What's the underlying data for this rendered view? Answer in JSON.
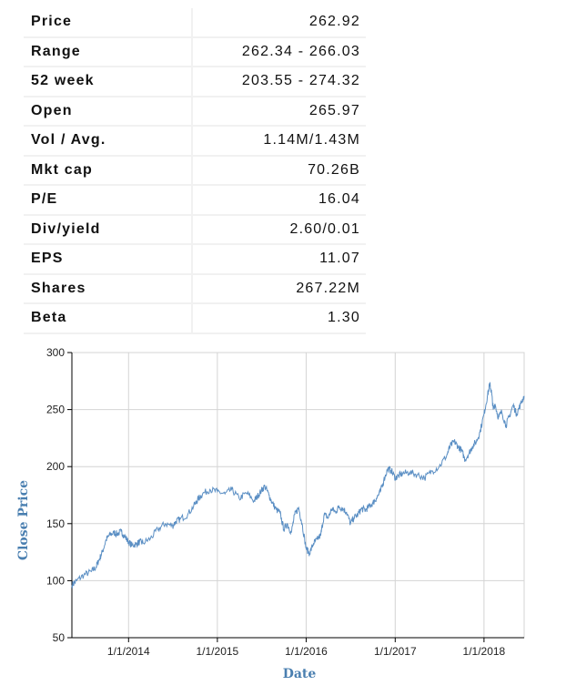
{
  "stats": [
    {
      "label": "Price",
      "value": "262.92"
    },
    {
      "label": "Range",
      "value": "262.34 - 266.03"
    },
    {
      "label": "52 week",
      "value": "203.55 - 274.32"
    },
    {
      "label": "Open",
      "value": "265.97"
    },
    {
      "label": "Vol / Avg.",
      "value": "1.14M/1.43M"
    },
    {
      "label": "Mkt cap",
      "value": "70.26B"
    },
    {
      "label": "P/E",
      "value": "16.04"
    },
    {
      "label": "Div/yield",
      "value": "2.60/0.01"
    },
    {
      "label": "EPS",
      "value": "11.07"
    },
    {
      "label": "Shares",
      "value": "267.22M"
    },
    {
      "label": "Beta",
      "value": "1.30"
    }
  ],
  "chart_data": {
    "type": "line",
    "xlabel": "Date",
    "ylabel": "Close Price",
    "x_range": [
      "2013-05-13",
      "2018-06-15"
    ],
    "ylim": [
      50,
      300
    ],
    "y_ticks": [
      50,
      100,
      150,
      200,
      250,
      300
    ],
    "x_ticks": [
      "1/1/2014",
      "1/1/2015",
      "1/1/2016",
      "1/1/2017",
      "1/1/2018"
    ],
    "x_tick_dates": [
      "2014-01-01",
      "2015-01-01",
      "2016-01-01",
      "2017-01-01",
      "2018-01-01"
    ],
    "grid": true,
    "line_color": "#5b8fc4",
    "series": [
      {
        "x": [
          "2013-05-13",
          "2013-06-01",
          "2013-07-01",
          "2013-08-01",
          "2013-08-20",
          "2013-09-01",
          "2013-09-15",
          "2013-10-01",
          "2013-10-15",
          "2013-11-01",
          "2013-11-15",
          "2013-12-01",
          "2013-12-15",
          "2014-01-01",
          "2014-01-15",
          "2014-02-01",
          "2014-02-15",
          "2014-03-01",
          "2014-04-01",
          "2014-05-01",
          "2014-06-01",
          "2014-07-01",
          "2014-07-15",
          "2014-08-01",
          "2014-09-01",
          "2014-10-01",
          "2014-10-15",
          "2014-11-01",
          "2014-12-01",
          "2015-01-01",
          "2015-02-01",
          "2015-03-01",
          "2015-04-01",
          "2015-05-01",
          "2015-06-01",
          "2015-06-15",
          "2015-07-01",
          "2015-07-15",
          "2015-08-01",
          "2015-08-15",
          "2015-09-01",
          "2015-09-15",
          "2015-10-01",
          "2015-10-15",
          "2015-11-01",
          "2015-11-15",
          "2015-12-01",
          "2015-12-15",
          "2016-01-01",
          "2016-01-15",
          "2016-02-01",
          "2016-02-15",
          "2016-03-01",
          "2016-03-15",
          "2016-04-01",
          "2016-04-15",
          "2016-05-01",
          "2016-05-15",
          "2016-06-01",
          "2016-06-15",
          "2016-07-01",
          "2016-07-15",
          "2016-08-01",
          "2016-08-15",
          "2016-09-01",
          "2016-09-15",
          "2016-10-01",
          "2016-10-15",
          "2016-11-01",
          "2016-11-15",
          "2016-12-01",
          "2016-12-15",
          "2017-01-01",
          "2017-01-15",
          "2017-02-01",
          "2017-03-01",
          "2017-04-01",
          "2017-05-01",
          "2017-06-01",
          "2017-07-01",
          "2017-08-01",
          "2017-08-15",
          "2017-09-01",
          "2017-09-15",
          "2017-10-01",
          "2017-10-15",
          "2017-11-01",
          "2017-11-15",
          "2017-12-01",
          "2017-12-15",
          "2018-01-01",
          "2018-01-15",
          "2018-01-25",
          "2018-02-01",
          "2018-02-08",
          "2018-02-15",
          "2018-03-01",
          "2018-03-15",
          "2018-04-01",
          "2018-04-15",
          "2018-05-01",
          "2018-05-15",
          "2018-06-01",
          "2018-06-15"
        ],
        "y": [
          96,
          100,
          105,
          108,
          112,
          118,
          125,
          136,
          140,
          142,
          141,
          143,
          139,
          134,
          131,
          132,
          134,
          133,
          137,
          145,
          150,
          148,
          152,
          154,
          158,
          167,
          172,
          176,
          180,
          178,
          176,
          180,
          172,
          177,
          170,
          174,
          179,
          183,
          175,
          168,
          162,
          160,
          145,
          150,
          142,
          158,
          164,
          150,
          128,
          124,
          133,
          136,
          140,
          158,
          155,
          163,
          160,
          165,
          163,
          160,
          150,
          155,
          158,
          163,
          162,
          165,
          168,
          172,
          178,
          188,
          198,
          197,
          190,
          192,
          194,
          195,
          193,
          190,
          196,
          200,
          210,
          218,
          222,
          218,
          214,
          206,
          212,
          218,
          222,
          230,
          246,
          262,
          272,
          265,
          250,
          255,
          243,
          248,
          236,
          244,
          254,
          246,
          255,
          262
        ]
      }
    ]
  }
}
